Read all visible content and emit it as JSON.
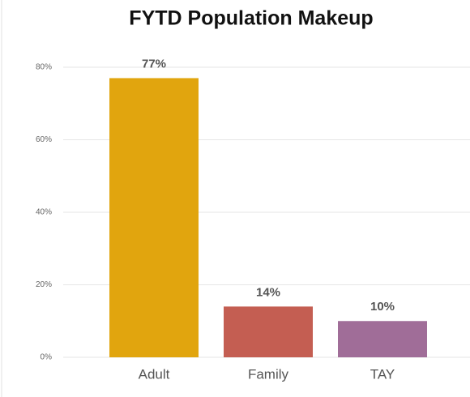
{
  "chart_data": {
    "type": "bar",
    "title": "FYTD Population Makeup",
    "categories": [
      "Adult",
      "Family",
      "TAY"
    ],
    "values": [
      77,
      14,
      10
    ],
    "value_labels": [
      "77%",
      "14%",
      "10%"
    ],
    "colors": [
      "#e1a50e",
      "#c45e52",
      "#a06d98"
    ],
    "ylim": [
      0,
      80
    ],
    "yticks": [
      {
        "value": 0,
        "label": "0%"
      },
      {
        "value": 20,
        "label": "20%"
      },
      {
        "value": 40,
        "label": "40%"
      },
      {
        "value": 60,
        "label": "60%"
      },
      {
        "value": 80,
        "label": "80%"
      }
    ],
    "grid": true
  }
}
